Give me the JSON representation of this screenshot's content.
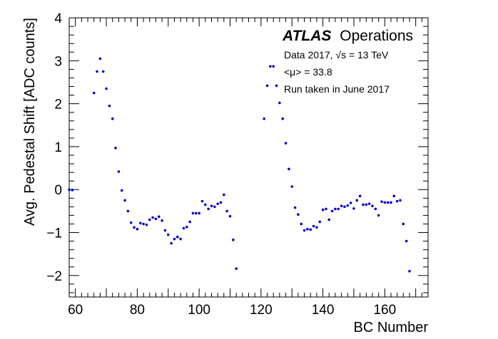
{
  "chart_data": {
    "type": "scatter",
    "xlabel": "BC Number",
    "ylabel": "Avg. Pedestal Shift [ADC counts]",
    "xlim": [
      58,
      174
    ],
    "ylim": [
      -2.5,
      4
    ],
    "xticks": [
      60,
      80,
      100,
      120,
      140,
      160
    ],
    "yticks": [
      -2,
      -1,
      0,
      1,
      2,
      3,
      4
    ],
    "grid": false,
    "marker_color": "#0000cc",
    "annotations": {
      "atlas": "ATLAS",
      "operations": "Operations",
      "data_line": "Data 2017, √s = 13 TeV",
      "mu_line": "<μ> = 33.8",
      "run_line": "Run taken in June 2017"
    },
    "points": [
      [
        58,
        0.0
      ],
      [
        59,
        -0.01
      ],
      [
        66,
        2.25
      ],
      [
        67,
        2.75
      ],
      [
        68,
        3.05
      ],
      [
        69,
        2.75
      ],
      [
        70,
        2.35
      ],
      [
        71,
        1.95
      ],
      [
        72,
        1.65
      ],
      [
        73,
        0.97
      ],
      [
        74,
        0.42
      ],
      [
        75,
        -0.02
      ],
      [
        76,
        -0.25
      ],
      [
        77,
        -0.5
      ],
      [
        78,
        -0.77
      ],
      [
        79,
        -0.88
      ],
      [
        80,
        -0.92
      ],
      [
        81,
        -0.78
      ],
      [
        82,
        -0.8
      ],
      [
        83,
        -0.82
      ],
      [
        84,
        -0.7
      ],
      [
        85,
        -0.65
      ],
      [
        86,
        -0.68
      ],
      [
        87,
        -0.63
      ],
      [
        88,
        -0.72
      ],
      [
        89,
        -0.95
      ],
      [
        90,
        -1.05
      ],
      [
        91,
        -1.25
      ],
      [
        92,
        -1.15
      ],
      [
        93,
        -1.1
      ],
      [
        94,
        -1.15
      ],
      [
        95,
        -0.9
      ],
      [
        96,
        -0.87
      ],
      [
        97,
        -0.75
      ],
      [
        98,
        -0.55
      ],
      [
        99,
        -0.55
      ],
      [
        100,
        -0.55
      ],
      [
        101,
        -0.27
      ],
      [
        102,
        -0.35
      ],
      [
        103,
        -0.45
      ],
      [
        104,
        -0.38
      ],
      [
        105,
        -0.4
      ],
      [
        106,
        -0.33
      ],
      [
        107,
        -0.3
      ],
      [
        108,
        -0.12
      ],
      [
        109,
        -0.5
      ],
      [
        110,
        -0.62
      ],
      [
        111,
        -1.17
      ],
      [
        112,
        -1.84
      ],
      [
        121,
        1.65
      ],
      [
        122,
        2.42
      ],
      [
        123,
        2.87
      ],
      [
        124,
        2.87
      ],
      [
        125,
        2.42
      ],
      [
        126,
        2.02
      ],
      [
        127,
        1.65
      ],
      [
        128,
        1.08
      ],
      [
        129,
        0.48
      ],
      [
        130,
        0.07
      ],
      [
        131,
        -0.42
      ],
      [
        132,
        -0.58
      ],
      [
        133,
        -0.8
      ],
      [
        134,
        -0.95
      ],
      [
        135,
        -0.92
      ],
      [
        136,
        -0.93
      ],
      [
        137,
        -0.85
      ],
      [
        138,
        -0.88
      ],
      [
        139,
        -0.75
      ],
      [
        140,
        -0.47
      ],
      [
        141,
        -0.45
      ],
      [
        142,
        -0.7
      ],
      [
        143,
        -0.5
      ],
      [
        144,
        -0.45
      ],
      [
        145,
        -0.45
      ],
      [
        146,
        -0.38
      ],
      [
        147,
        -0.4
      ],
      [
        148,
        -0.37
      ],
      [
        149,
        -0.31
      ],
      [
        150,
        -0.44
      ],
      [
        151,
        -0.25
      ],
      [
        152,
        -0.15
      ],
      [
        153,
        -0.35
      ],
      [
        154,
        -0.35
      ],
      [
        155,
        -0.33
      ],
      [
        156,
        -0.38
      ],
      [
        157,
        -0.45
      ],
      [
        158,
        -0.6
      ],
      [
        159,
        -0.28
      ],
      [
        160,
        -0.3
      ],
      [
        161,
        -0.3
      ],
      [
        162,
        -0.3
      ],
      [
        163,
        -0.15
      ],
      [
        164,
        -0.27
      ],
      [
        165,
        -0.25
      ],
      [
        166,
        -0.8
      ],
      [
        167,
        -1.2
      ],
      [
        168,
        -1.9
      ]
    ]
  }
}
